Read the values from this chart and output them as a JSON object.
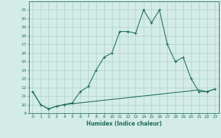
{
  "xlabel": "Humidex (Indice chaleur)",
  "x": [
    0,
    1,
    2,
    3,
    4,
    5,
    6,
    7,
    8,
    9,
    10,
    11,
    12,
    13,
    14,
    15,
    16,
    17,
    18,
    19,
    20,
    21,
    22,
    23
  ],
  "line1": [
    11.5,
    10.0,
    9.5,
    9.8,
    10.0,
    10.2,
    11.5,
    12.1,
    14.0,
    15.5,
    16.0,
    18.5,
    18.5,
    18.3,
    21.0,
    19.5,
    21.0,
    17.0,
    15.0,
    15.5,
    13.0,
    11.5,
    11.5,
    11.8
  ],
  "line2": [
    11.5,
    10.0,
    9.5,
    9.8,
    10.0,
    10.1,
    10.2,
    10.3,
    10.4,
    10.5,
    10.6,
    10.7,
    10.8,
    10.9,
    11.0,
    11.1,
    11.2,
    11.3,
    11.4,
    11.5,
    11.6,
    11.7,
    11.5,
    11.8
  ],
  "line_color": "#1a6b5a",
  "bg_color": "#d4ece6",
  "grid_color": "#aacfc8",
  "ylim": [
    9,
    22
  ],
  "xlim": [
    -0.5,
    23.5
  ],
  "yticks": [
    9,
    10,
    11,
    12,
    13,
    14,
    15,
    16,
    17,
    18,
    19,
    20,
    21
  ],
  "xticks": [
    0,
    1,
    2,
    3,
    4,
    5,
    6,
    7,
    8,
    9,
    10,
    11,
    12,
    13,
    14,
    15,
    16,
    17,
    18,
    19,
    20,
    21,
    22,
    23
  ]
}
